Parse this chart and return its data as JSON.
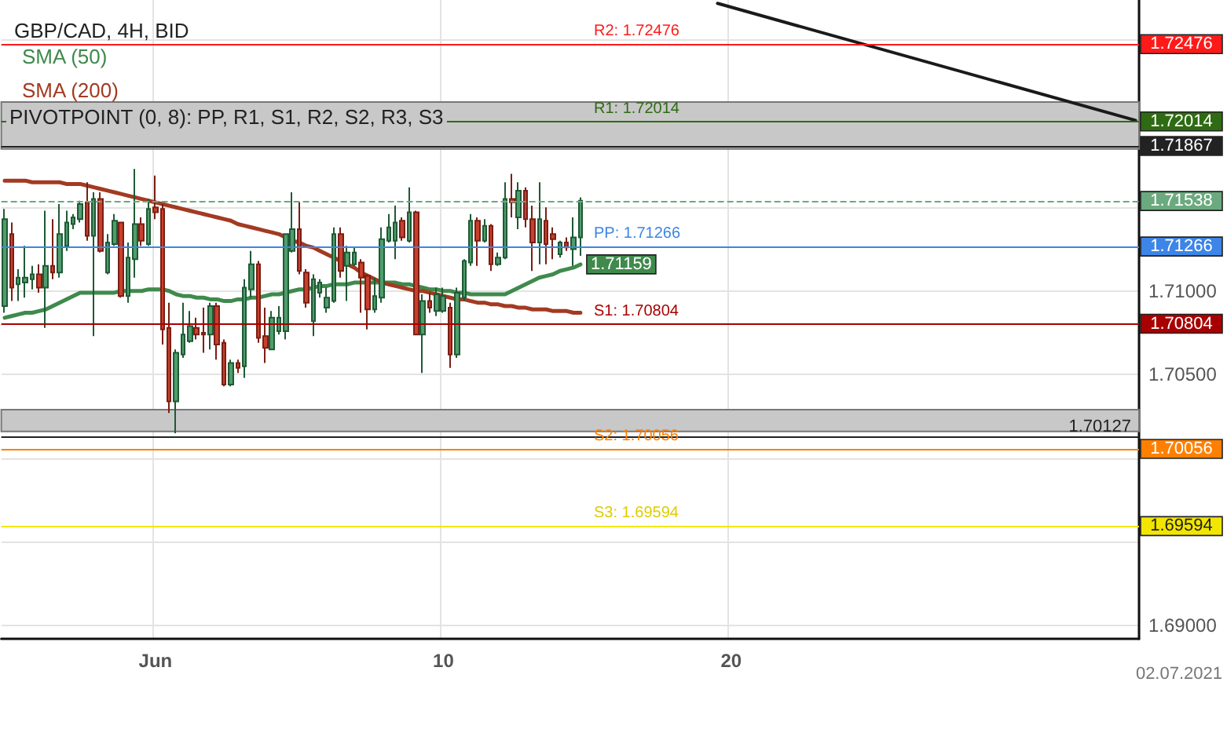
{
  "chart_data": {
    "type": "candlestick",
    "title": "GBP/CAD, 4H, BID",
    "categories": [
      null,
      null,
      null,
      null,
      null,
      null,
      null,
      null,
      null,
      null,
      null,
      null,
      null,
      null,
      null,
      null,
      null,
      null,
      null,
      null,
      null,
      null,
      "Jun",
      null,
      null,
      null,
      null,
      null,
      null,
      null,
      null,
      null,
      null,
      null,
      null,
      null,
      null,
      null,
      null,
      null,
      null,
      null,
      null,
      null,
      null,
      null,
      null,
      null,
      null,
      null,
      null,
      null,
      null,
      null,
      null,
      null,
      null,
      null,
      null,
      null,
      null,
      null,
      null,
      null,
      "10",
      null,
      null,
      null,
      null,
      null,
      null,
      null,
      null,
      null,
      null,
      null,
      null,
      null,
      null,
      null,
      null,
      null,
      null,
      null,
      null,
      null,
      null,
      null,
      null,
      null,
      null,
      null,
      null,
      null,
      null,
      null,
      null,
      null,
      null,
      null,
      null,
      null,
      null,
      null,
      null,
      null,
      "20",
      null,
      null,
      null,
      null,
      null,
      null,
      null,
      null,
      null,
      null,
      null,
      null,
      null,
      null,
      null,
      null,
      null,
      null,
      null,
      null,
      null,
      null,
      null,
      null,
      null,
      null,
      null,
      null,
      null,
      null,
      null,
      null,
      null,
      null,
      null,
      null,
      null,
      null,
      null,
      null,
      null,
      null,
      null,
      null,
      null,
      null,
      null,
      null,
      null,
      null,
      null,
      null,
      null,
      null,
      null,
      null,
      null,
      null,
      null
    ],
    "ohlc": [
      [
        1.7091,
        1.7149,
        1.7087,
        1.7143
      ],
      [
        1.7134,
        1.7141,
        1.7094,
        1.7102
      ],
      [
        1.7104,
        1.7113,
        1.7094,
        1.7108
      ],
      [
        1.7105,
        1.7127,
        1.7096,
        1.7108
      ],
      [
        1.7107,
        1.7115,
        1.7101,
        1.711
      ],
      [
        1.711,
        1.7116,
        1.7099,
        1.7102
      ],
      [
        1.7102,
        1.7148,
        1.7078,
        1.7115
      ],
      [
        1.7115,
        1.7143,
        1.7107,
        1.7111
      ],
      [
        1.7111,
        1.7152,
        1.7108,
        1.7134
      ],
      [
        1.7127,
        1.7148,
        1.7124,
        1.7141
      ],
      [
        1.714,
        1.7146,
        1.7137,
        1.7144
      ],
      [
        1.7143,
        1.7154,
        1.7141,
        1.7152
      ],
      [
        1.7153,
        1.7165,
        1.713,
        1.7133
      ],
      [
        1.7133,
        1.7159,
        1.7073,
        1.7155
      ],
      [
        1.7155,
        1.7159,
        1.7123,
        1.7124
      ],
      [
        1.7111,
        1.7134,
        1.711,
        1.7129
      ],
      [
        1.7128,
        1.7146,
        1.7127,
        1.7142
      ],
      [
        1.7141,
        1.7141,
        1.7096,
        1.7097
      ],
      [
        1.7097,
        1.7129,
        1.7093,
        1.712
      ],
      [
        1.7119,
        1.7173,
        1.7108,
        1.714
      ],
      [
        1.714,
        1.7144,
        1.7127,
        1.713
      ],
      [
        1.7128,
        1.7155,
        1.7127,
        1.7149
      ],
      [
        1.715,
        1.7169,
        1.7143,
        1.7147
      ],
      [
        1.7149,
        1.7152,
        1.7068,
        1.7077
      ],
      [
        1.7078,
        1.7093,
        1.7027,
        1.7034
      ],
      [
        1.7034,
        1.7065,
        1.7015,
        1.7063
      ],
      [
        1.7062,
        1.7093,
        1.706,
        1.7074
      ],
      [
        1.707,
        1.7088,
        1.7069,
        1.7079
      ],
      [
        1.7078,
        1.7084,
        1.7071,
        1.7074
      ],
      [
        1.7075,
        1.709,
        1.7063,
        1.7074
      ],
      [
        1.7074,
        1.7093,
        1.7065,
        1.7091
      ],
      [
        1.7091,
        1.7093,
        1.7059,
        1.7068
      ],
      [
        1.7069,
        1.7071,
        1.7043,
        1.7044
      ],
      [
        1.7044,
        1.7059,
        1.7043,
        1.7057
      ],
      [
        1.7057,
        1.7059,
        1.7051,
        1.7054
      ],
      [
        1.7055,
        1.7107,
        1.7048,
        1.7102
      ],
      [
        1.7101,
        1.7124,
        1.7096,
        1.7116
      ],
      [
        1.7116,
        1.7118,
        1.7069,
        1.7072
      ],
      [
        1.7073,
        1.709,
        1.7057,
        1.7066
      ],
      [
        1.7065,
        1.7088,
        1.7065,
        1.7084
      ],
      [
        1.7076,
        1.7091,
        1.7074,
        1.7084
      ],
      [
        1.7076,
        1.7134,
        1.7071,
        1.7134
      ],
      [
        1.7124,
        1.7159,
        1.7123,
        1.7137
      ],
      [
        1.7137,
        1.7153,
        1.711,
        1.7112
      ],
      [
        1.7111,
        1.7113,
        1.709,
        1.7093
      ],
      [
        1.7082,
        1.711,
        1.7073,
        1.7107
      ],
      [
        1.7099,
        1.7107,
        1.7096,
        1.7105
      ],
      [
        1.709,
        1.7102,
        1.7087,
        1.7096
      ],
      [
        1.7094,
        1.7138,
        1.7093,
        1.7134
      ],
      [
        1.7134,
        1.7138,
        1.7108,
        1.7112
      ],
      [
        1.7115,
        1.7127,
        1.7094,
        1.7123
      ],
      [
        1.7116,
        1.7126,
        1.7115,
        1.7123
      ],
      [
        1.7117,
        1.7119,
        1.7087,
        1.7108
      ],
      [
        1.7109,
        1.711,
        1.7077,
        1.7089
      ],
      [
        1.7089,
        1.7108,
        1.7087,
        1.7097
      ],
      [
        1.7096,
        1.7138,
        1.7093,
        1.7131
      ],
      [
        1.713,
        1.7146,
        1.7129,
        1.7138
      ],
      [
        1.713,
        1.7151,
        1.7119,
        1.7141
      ],
      [
        1.7142,
        1.7144,
        1.713,
        1.7132
      ],
      [
        1.713,
        1.7162,
        1.7129,
        1.7147
      ],
      [
        1.7147,
        1.7148,
        1.7074,
        1.7074
      ],
      [
        1.7074,
        1.7098,
        1.7051,
        1.7094
      ],
      [
        1.7094,
        1.7099,
        1.7087,
        1.709
      ],
      [
        1.7088,
        1.7102,
        1.7085,
        1.7098
      ],
      [
        1.7088,
        1.7102,
        1.7087,
        1.7097
      ],
      [
        1.709,
        1.7093,
        1.7054,
        1.7062
      ],
      [
        1.7062,
        1.7102,
        1.706,
        1.7099
      ],
      [
        1.7096,
        1.7119,
        1.7094,
        1.7118
      ],
      [
        1.7117,
        1.7146,
        1.7115,
        1.7142
      ],
      [
        1.7142,
        1.7144,
        1.7115,
        1.713
      ],
      [
        1.713,
        1.7143,
        1.7129,
        1.7139
      ],
      [
        1.7139,
        1.714,
        1.7112,
        1.7116
      ],
      [
        1.7116,
        1.7123,
        1.7115,
        1.712
      ],
      [
        1.712,
        1.7165,
        1.7119,
        1.7155
      ],
      [
        1.7155,
        1.717,
        1.7144,
        1.7153
      ],
      [
        1.7144,
        1.7165,
        1.7137,
        1.716
      ],
      [
        1.716,
        1.7162,
        1.7138,
        1.7143
      ],
      [
        1.7143,
        1.7151,
        1.7112,
        1.7129
      ],
      [
        1.7129,
        1.7165,
        1.7116,
        1.7143
      ],
      [
        1.7142,
        1.715,
        1.7116,
        1.7128
      ],
      [
        1.7134,
        1.7138,
        1.7119,
        1.7131
      ],
      [
        1.7122,
        1.713,
        1.712,
        1.7129
      ],
      [
        1.7129,
        1.7132,
        1.7124,
        1.7126
      ],
      [
        1.7125,
        1.7144,
        1.7115,
        1.7132
      ],
      [
        1.7132,
        1.7156,
        1.7121,
        1.7154
      ],
      null,
      null,
      null,
      null,
      null,
      null,
      null,
      null,
      null,
      null,
      null,
      null,
      null,
      null,
      null,
      null,
      null,
      null,
      null,
      null,
      null,
      null,
      null,
      null,
      null,
      null,
      null,
      null,
      null,
      null,
      null,
      null,
      null,
      null,
      null,
      null,
      null,
      null,
      null,
      null,
      null,
      null,
      null,
      null,
      null,
      null,
      null,
      null,
      null,
      null,
      null,
      null,
      null,
      null,
      null,
      null,
      null,
      null,
      null,
      null,
      null,
      null,
      null,
      null,
      null,
      null,
      null,
      null,
      null,
      null,
      null,
      null,
      null,
      null,
      null,
      null,
      null,
      null,
      null,
      null,
      null
    ],
    "series": [
      {
        "name": "SMA (50)",
        "type": "line",
        "color": "#3f8a4c",
        "values": [
          1.7084,
          1.7085,
          1.7086,
          1.7087,
          1.7087,
          1.7088,
          1.7089,
          1.7091,
          1.7093,
          1.7095,
          1.7097,
          1.7099,
          1.7099,
          1.7099,
          1.7099,
          1.7099,
          1.7099,
          1.71,
          1.71,
          1.71,
          1.71,
          1.7101,
          1.7101,
          1.7101,
          1.71,
          1.7098,
          1.7097,
          1.7097,
          1.7096,
          1.7096,
          1.7095,
          1.7095,
          1.7094,
          1.7094,
          1.7095,
          1.7095,
          1.7096,
          1.7096,
          1.7097,
          1.7098,
          1.7098,
          1.7099,
          1.71,
          1.7101,
          1.7101,
          1.7102,
          1.7103,
          1.7103,
          1.7104,
          1.7104,
          1.7104,
          1.7105,
          1.7105,
          1.7105,
          1.7105,
          1.7105,
          1.7105,
          1.7105,
          1.7104,
          1.7104,
          1.7103,
          1.7102,
          1.7101,
          1.7101,
          1.71,
          1.71,
          1.7099,
          1.7099,
          1.7098,
          1.7098,
          1.7098,
          1.7098,
          1.7098,
          1.7098,
          1.71,
          1.7102,
          1.7104,
          1.7106,
          1.7108,
          1.7109,
          1.711,
          1.7112,
          1.7113,
          1.7114,
          1.71159,
          null,
          null,
          null,
          null,
          null,
          null,
          null,
          null,
          null,
          null,
          null,
          null,
          null,
          null,
          null,
          null,
          null,
          null,
          null,
          null,
          null,
          null,
          null,
          null,
          null,
          null,
          null,
          null,
          null,
          null,
          null,
          null,
          null,
          null,
          null,
          null,
          null,
          null,
          null,
          null,
          null,
          null,
          null,
          null,
          null,
          null,
          null,
          null,
          null,
          null,
          null,
          null,
          null,
          null,
          null,
          null,
          null,
          null,
          null,
          null,
          null,
          null,
          null,
          null,
          null,
          null,
          null,
          null,
          null,
          null,
          null,
          null,
          null,
          null,
          null,
          null,
          null,
          null,
          null,
          null,
          null
        ],
        "value_labels": [
          null,
          null,
          null,
          null,
          null,
          null,
          null,
          null,
          null,
          null,
          null,
          null,
          null,
          null,
          null,
          null,
          null,
          null,
          null,
          null,
          null,
          null,
          null,
          null,
          null,
          null,
          null,
          null,
          null,
          null,
          null,
          null,
          null,
          null,
          null,
          null,
          null,
          null,
          null,
          null,
          null,
          null,
          null,
          null,
          null,
          null,
          null,
          null,
          null,
          null,
          null,
          null,
          null,
          null,
          null,
          null,
          null,
          null,
          null,
          null,
          null,
          null,
          null,
          null,
          null,
          null,
          null,
          null,
          null,
          null,
          null,
          null,
          null,
          null,
          null,
          null,
          null,
          null,
          null,
          null,
          null,
          null,
          null,
          null,
          "1.71159",
          null,
          null,
          null,
          null,
          null,
          null,
          null,
          null,
          null,
          null,
          null,
          null,
          null,
          null,
          null,
          null,
          null,
          null,
          null,
          null,
          null,
          null,
          null,
          null,
          null,
          null,
          null,
          null,
          null,
          null,
          null,
          null,
          null,
          null,
          null,
          null,
          null,
          null,
          null,
          null,
          null,
          null,
          null,
          null,
          null,
          null,
          null,
          null,
          null,
          null,
          null,
          null,
          null,
          null,
          null,
          null,
          null,
          null,
          null,
          null,
          null,
          null,
          null,
          null,
          null,
          null,
          null,
          null,
          null,
          null,
          null,
          null,
          null,
          null,
          null,
          null,
          null,
          null,
          null,
          null,
          null
        ]
      },
      {
        "name": "SMA (200)",
        "type": "line",
        "color": "#a33a22",
        "values": [
          1.7166,
          1.7166,
          1.7166,
          1.7166,
          1.7165,
          1.7165,
          1.7165,
          1.7165,
          1.7165,
          1.7164,
          1.7164,
          1.7164,
          1.7163,
          1.7162,
          1.7161,
          1.716,
          1.7159,
          1.7158,
          1.7157,
          1.7156,
          1.7155,
          1.7154,
          1.7153,
          1.7152,
          1.7151,
          1.715,
          1.7149,
          1.7148,
          1.7147,
          1.7146,
          1.7145,
          1.7144,
          1.7143,
          1.7142,
          1.714,
          1.7139,
          1.7138,
          1.7137,
          1.7136,
          1.7135,
          1.7134,
          1.7132,
          1.713,
          1.7129,
          1.7127,
          1.7126,
          1.7124,
          1.7122,
          1.712,
          1.7118,
          1.7116,
          1.7114,
          1.7111,
          1.7109,
          1.7107,
          1.7105,
          1.7104,
          1.7103,
          1.7102,
          1.7101,
          1.71,
          1.71,
          1.7099,
          1.7098,
          1.7097,
          1.7096,
          1.7095,
          1.7095,
          1.7094,
          1.7093,
          1.7093,
          1.7092,
          1.7092,
          1.7091,
          1.7091,
          1.709,
          1.709,
          1.7089,
          1.7089,
          1.7089,
          1.7088,
          1.7088,
          1.7088,
          1.7087,
          1.7087,
          null,
          null,
          null,
          null,
          null,
          null,
          null,
          null,
          null,
          null,
          null,
          null,
          null,
          null,
          null,
          null,
          null,
          null,
          null,
          null,
          null,
          null,
          null,
          null,
          null,
          null,
          null,
          null,
          null,
          null,
          null,
          null,
          null,
          null,
          null,
          null,
          null,
          null,
          null,
          null,
          null,
          null,
          null,
          null,
          null,
          null,
          null,
          null,
          null,
          null,
          null,
          null,
          null,
          null,
          null,
          null,
          null,
          null,
          null,
          null,
          null,
          null,
          null,
          null,
          null,
          null,
          null,
          null,
          null,
          null,
          null,
          null,
          null,
          null,
          null,
          null,
          null,
          null,
          null,
          null,
          null
        ]
      },
      {
        "type": "line",
        "color": "#1a1a1a",
        "values": [
          null,
          null,
          null,
          null,
          null,
          null,
          null,
          null,
          null,
          null,
          null,
          null,
          null,
          null,
          null,
          null,
          null,
          null,
          null,
          null,
          null,
          null,
          null,
          null,
          null,
          null,
          null,
          null,
          null,
          null,
          null,
          null,
          null,
          null,
          null,
          null,
          null,
          null,
          null,
          null,
          null,
          null,
          null,
          null,
          null,
          null,
          null,
          null,
          null,
          null,
          null,
          null,
          null,
          null,
          null,
          null,
          null,
          null,
          null,
          null,
          null,
          null,
          null,
          null,
          null,
          null,
          null,
          null,
          null,
          null,
          null,
          null,
          null,
          null,
          null,
          null,
          null,
          null,
          null,
          null,
          null,
          null,
          null,
          null,
          null,
          null,
          null,
          null,
          null,
          null,
          null,
          null,
          null,
          null,
          null,
          null,
          null,
          null,
          null,
          null,
          null,
          null,
          null,
          null,
          1.7272,
          null,
          null,
          null,
          null,
          null,
          null,
          null,
          null,
          null,
          null,
          null,
          null,
          null,
          null,
          null,
          null,
          null,
          null,
          null,
          null,
          null,
          null,
          null,
          null,
          null,
          null,
          null,
          null,
          null,
          null,
          null,
          null,
          null,
          null,
          null,
          null,
          null,
          null,
          null,
          null,
          null,
          null,
          null,
          null,
          null,
          null,
          null,
          null,
          null,
          null,
          null,
          null,
          null,
          null,
          null,
          null,
          null,
          null,
          null,
          null,
          1.7202
        ]
      }
    ],
    "ylim": [
      1.6892,
      1.7274
    ],
    "yticks": [
      {
        "value": 1.69,
        "label": "1.69000"
      },
      {
        "value": 1.695,
        "label": null
      },
      {
        "value": 1.7,
        "label": null
      },
      {
        "value": 1.705,
        "label": "1.70500"
      },
      {
        "value": 1.71,
        "label": "1.71000"
      },
      {
        "value": 1.715,
        "label": null
      },
      {
        "value": 1.72,
        "label": null
      },
      {
        "value": 1.725,
        "label": null
      }
    ],
    "ref_lines": [
      {
        "axis": "y",
        "value": 1.72476,
        "label": "1.72476",
        "color": "#ff1a1a"
      },
      {
        "axis": "y",
        "value": 1.72014,
        "label": "1.72014",
        "color": "#2e6b12"
      },
      {
        "axis": "y",
        "value": 1.71867,
        "label": "1.71867",
        "color": "#222222"
      },
      {
        "axis": "y",
        "value": 1.71538,
        "label": "1.71538",
        "color": "#6aaa7e",
        "line_style": "dashed"
      },
      {
        "axis": "y",
        "value": 1.71266,
        "label": "1.71266",
        "color": "#3d85e6"
      },
      {
        "axis": "y",
        "value": 1.70804,
        "label": "1.70804",
        "color": "#a80000"
      },
      {
        "axis": "y",
        "value": 1.70127,
        "label": "1.70127",
        "color": "#222222"
      },
      {
        "axis": "y",
        "value": 1.70056,
        "label": "1.70056",
        "color": "#ff8000"
      },
      {
        "axis": "y",
        "value": 1.69594,
        "label": "1.69594",
        "color": "#f2e600"
      }
    ],
    "bands": [
      {
        "axis": "y",
        "from": 1.7185,
        "to": 1.7213,
        "color": "#c8c8c8"
      },
      {
        "axis": "y",
        "from": 1.7016,
        "to": 1.7029,
        "color": "#c8c8c8"
      }
    ],
    "annotations": [
      "PIVOTPOINT (0, 8): PP, R1, S1, R2, S2, R3, S3",
      "02.07.2021",
      {
        "text": "R2: 1.72476",
        "y": 1.72476
      },
      {
        "text": "R1: 1.72014",
        "y": 1.72014
      },
      {
        "text": "PP: 1.71266",
        "y": 1.71266
      },
      {
        "text": "S1: 1.70804",
        "y": 1.70804
      },
      {
        "text": "S2: 1.70056",
        "y": 1.70056
      },
      {
        "text": "S3: 1.69594",
        "y": 1.69594
      }
    ],
    "grid": true,
    "legend": "top left",
    "marker": "none"
  }
}
